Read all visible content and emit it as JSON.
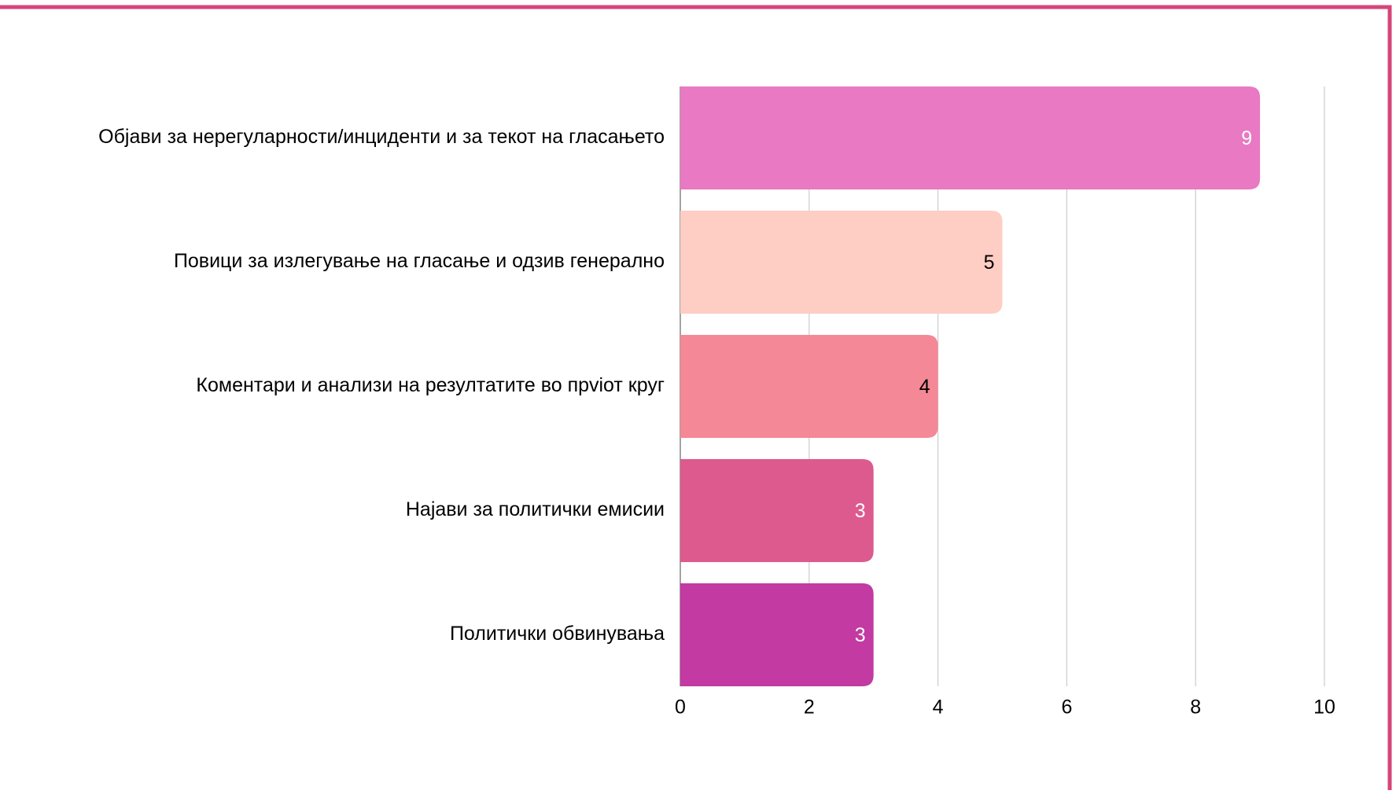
{
  "chart_data": {
    "type": "hbar",
    "categories": [
      "Објави за нерегуларности/инциденти и за текот на гласањето",
      "Повици за излегување на гласање и одзив генерално",
      "Коментари и анализи на резултатите во прviот круг",
      "Најави за политички емисии",
      "Политички обвинувања"
    ],
    "values": [
      9,
      5,
      4,
      3,
      3
    ],
    "colors": [
      "#e879c2",
      "#fecdc3",
      "#f48896",
      "#dd5a8e",
      "#c23aa2"
    ],
    "value_label_colors": [
      "#ffffff",
      "#000000",
      "#000000",
      "#ffffff",
      "#ffffff"
    ],
    "xlim": [
      0,
      10
    ],
    "xticks": [
      0,
      2,
      4,
      6,
      8,
      10
    ],
    "grid": true
  }
}
